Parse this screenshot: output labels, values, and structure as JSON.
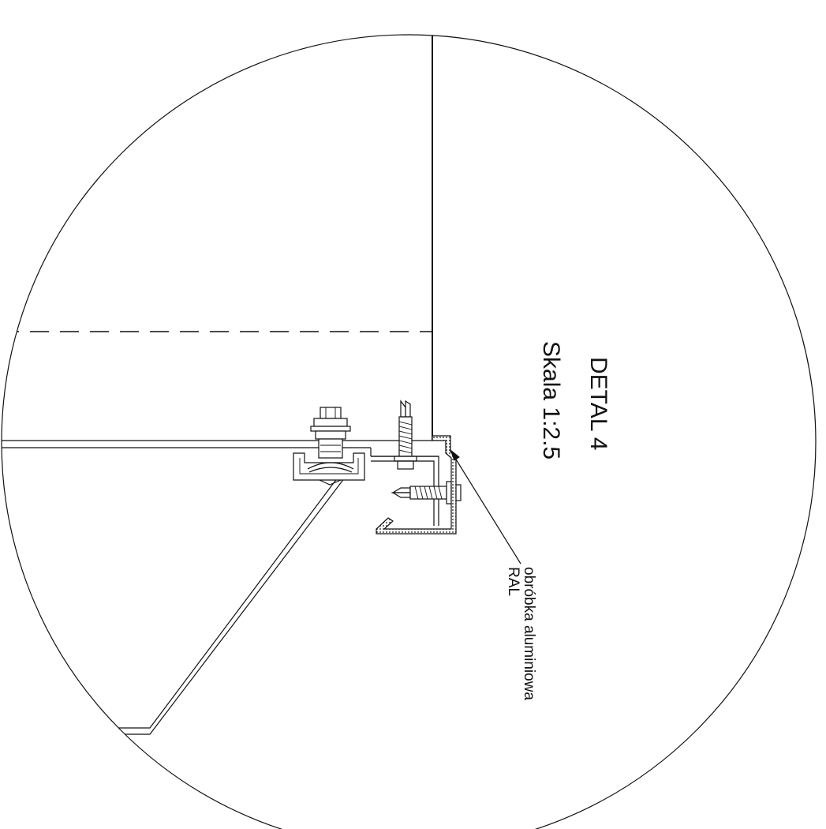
{
  "detail": {
    "title": "DETAL 4",
    "scale": "Skala 1:2.5"
  },
  "annotation": {
    "line1": "obróbka aluminiowa",
    "line2": "RAL"
  }
}
